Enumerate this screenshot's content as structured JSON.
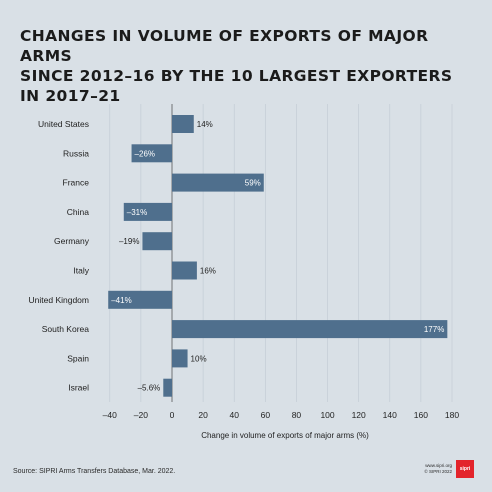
{
  "title": "CHANGES IN VOLUME OF EXPORTS OF MAJOR ARMS\nSINCE 2012–16 BY THE 10 LARGEST EXPORTERS\nIN 2017–21",
  "source": "Source: SIPRI Arms Transfers Database, Mar. 2022.",
  "footer": {
    "url": "www.sipri.org",
    "copyright": "© SIPRI 2022",
    "logo_text": "sipri"
  },
  "colors": {
    "bar": "#4f6f8d",
    "background": "#d9e0e6"
  },
  "chart_data": {
    "type": "bar",
    "orientation": "horizontal",
    "categories": [
      "United States",
      "Russia",
      "France",
      "China",
      "Germany",
      "Italy",
      "United Kingdom",
      "South Korea",
      "Spain",
      "Israel"
    ],
    "values": [
      14,
      -26,
      59,
      -31,
      -19,
      16,
      -41,
      177,
      10,
      -5.6
    ],
    "data_labels": [
      "14%",
      "–26%",
      "59%",
      "–31%",
      "–19%",
      "16%",
      "–41%",
      "177%",
      "10%",
      "–5.6%"
    ],
    "xlabel": "Change in volume of exports of major arms (%)",
    "xlim": [
      -50,
      180
    ],
    "xticks": [
      -40,
      -20,
      0,
      20,
      40,
      60,
      80,
      100,
      120,
      140,
      160,
      180
    ],
    "xtick_labels": [
      "–40",
      "–20",
      "0",
      "20",
      "40",
      "60",
      "80",
      "100",
      "120",
      "140",
      "160",
      "180"
    ]
  }
}
